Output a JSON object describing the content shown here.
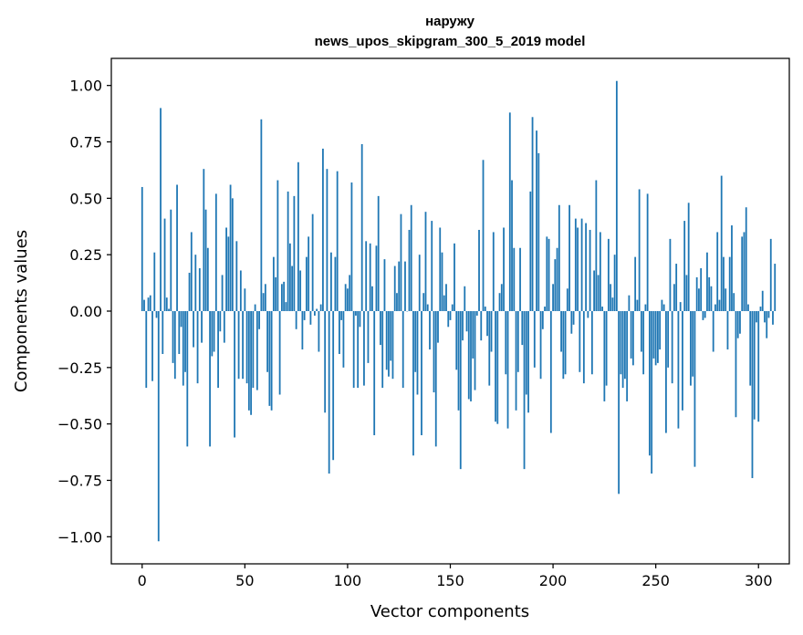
{
  "chart_data": {
    "type": "bar",
    "title_lines": [
      "наружу",
      "news_upos_skipgram_300_5_2019 model"
    ],
    "xlabel": "Vector components",
    "ylabel": "Components values",
    "xlim": [
      -15,
      315
    ],
    "ylim": [
      -1.12,
      1.12
    ],
    "xticks": [
      0,
      50,
      100,
      150,
      200,
      250,
      300
    ],
    "yticks": [
      1.0,
      0.75,
      0.5,
      0.25,
      0.0,
      -0.25,
      -0.5,
      -0.75,
      -1.0
    ],
    "ytick_labels": [
      "1.00",
      "0.75",
      "0.50",
      "0.25",
      "0.00",
      "−0.25",
      "−0.50",
      "−0.75",
      "−1.00"
    ],
    "bar_color": "#1f77b4",
    "grid": false,
    "values": [
      0.55,
      0.05,
      -0.34,
      0.06,
      0.07,
      -0.31,
      0.26,
      -0.03,
      -1.02,
      0.9,
      -0.19,
      0.41,
      0.06,
      0.01,
      0.45,
      -0.23,
      -0.3,
      0.56,
      -0.19,
      -0.07,
      -0.33,
      -0.27,
      -0.6,
      0.17,
      0.35,
      -0.16,
      0.25,
      -0.32,
      0.19,
      -0.14,
      0.63,
      0.45,
      0.28,
      -0.6,
      -0.2,
      -0.18,
      0.52,
      -0.34,
      -0.09,
      0.16,
      -0.14,
      0.37,
      0.33,
      0.56,
      0.5,
      -0.56,
      0.31,
      -0.3,
      0.18,
      -0.3,
      0.1,
      -0.32,
      -0.44,
      -0.46,
      -0.34,
      0.03,
      -0.35,
      -0.08,
      0.85,
      0.08,
      0.12,
      -0.27,
      -0.42,
      -0.44,
      0.24,
      0.15,
      0.58,
      -0.37,
      0.12,
      0.13,
      0.04,
      0.53,
      0.3,
      0.2,
      0.51,
      -0.08,
      0.66,
      0.18,
      -0.17,
      -0.04,
      0.24,
      0.33,
      -0.06,
      0.43,
      -0.02,
      0.01,
      -0.18,
      0.03,
      0.72,
      -0.45,
      0.63,
      -0.72,
      0.26,
      -0.66,
      0.24,
      0.62,
      -0.19,
      -0.04,
      -0.25,
      0.12,
      0.1,
      0.16,
      0.57,
      -0.34,
      -0.02,
      -0.34,
      -0.07,
      0.74,
      -0.33,
      0.31,
      -0.23,
      0.3,
      0.11,
      -0.55,
      0.29,
      0.51,
      -0.15,
      -0.34,
      0.23,
      -0.26,
      -0.29,
      -0.22,
      -0.3,
      0.2,
      0.08,
      0.22,
      0.43,
      -0.34,
      0.22,
      0.0,
      0.36,
      0.47,
      -0.64,
      -0.27,
      -0.37,
      0.25,
      -0.55,
      0.08,
      0.44,
      0.03,
      -0.17,
      0.4,
      -0.36,
      -0.6,
      -0.14,
      0.37,
      0.26,
      0.07,
      0.12,
      -0.07,
      -0.04,
      0.03,
      0.3,
      -0.26,
      -0.44,
      -0.7,
      -0.13,
      0.11,
      -0.09,
      -0.39,
      -0.4,
      -0.21,
      -0.35,
      -0.02,
      0.36,
      -0.13,
      0.67,
      0.02,
      -0.11,
      -0.33,
      -0.18,
      0.35,
      -0.49,
      -0.5,
      0.08,
      0.12,
      0.37,
      -0.28,
      -0.52,
      0.88,
      0.58,
      0.28,
      -0.44,
      -0.27,
      0.28,
      -0.15,
      -0.7,
      -0.37,
      -0.45,
      0.53,
      0.86,
      -0.25,
      0.8,
      0.7,
      -0.3,
      -0.08,
      0.02,
      0.33,
      0.32,
      -0.54,
      0.12,
      0.23,
      0.28,
      0.47,
      -0.18,
      -0.3,
      -0.28,
      0.1,
      0.47,
      -0.1,
      -0.06,
      0.41,
      0.37,
      -0.27,
      0.41,
      -0.32,
      0.39,
      -0.03,
      0.36,
      -0.28,
      0.18,
      0.58,
      0.16,
      0.35,
      0.02,
      -0.4,
      -0.33,
      0.32,
      0.12,
      0.06,
      0.25,
      1.02,
      -0.81,
      -0.28,
      -0.34,
      -0.3,
      -0.4,
      0.07,
      -0.21,
      -0.24,
      0.24,
      0.05,
      0.54,
      -0.18,
      -0.28,
      0.03,
      0.52,
      -0.64,
      -0.72,
      -0.21,
      -0.24,
      -0.23,
      -0.17,
      0.05,
      0.03,
      -0.54,
      -0.25,
      0.32,
      -0.32,
      0.12,
      0.21,
      -0.52,
      0.04,
      -0.44,
      0.4,
      0.16,
      0.48,
      -0.33,
      -0.29,
      -0.69,
      0.15,
      0.1,
      0.19,
      -0.04,
      -0.03,
      0.26,
      0.15,
      0.11,
      -0.18,
      0.03,
      0.35,
      0.05,
      0.6,
      0.24,
      0.1,
      -0.17,
      0.24,
      0.38,
      0.08,
      -0.47,
      -0.12,
      -0.1,
      0.33,
      0.35,
      0.46,
      0.03,
      -0.33,
      -0.74,
      -0.48,
      -0.05,
      -0.49,
      0.02,
      0.09,
      -0.05,
      -0.12,
      -0.03,
      0.32,
      -0.06,
      0.21
    ]
  }
}
